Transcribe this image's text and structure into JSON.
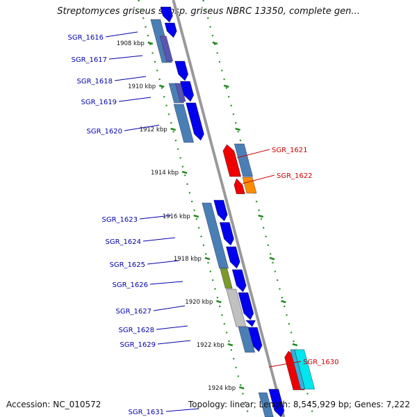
{
  "title": "Streptomyces griseus subsp. griseus NBRC 13350, complete gen...",
  "footer": {
    "accession": "Accession: NC_010572",
    "topology": "Topology: linear; Length: 8,545,929 bp; Genes: 7,222"
  },
  "colors": {
    "plus_strand": "#0000ee",
    "minus_strand": "#ee0000",
    "label_plus": "#0000aa",
    "label_minus": "#cc0000",
    "feature_blue": "#4a7fb5",
    "feature_purple": "#5a55b0",
    "feature_olive": "#7a9a2a",
    "feature_grey": "#c0c0c0",
    "feature_orange": "#ff8c00",
    "feature_cyan": "#00e5ee",
    "ruler": "#228b22",
    "backbone": "#888888"
  },
  "kbp_labels": [
    "1908 kbp",
    "1910 kbp",
    "1912 kbp",
    "1914 kbp",
    "1916 kbp",
    "1918 kbp",
    "1920 kbp",
    "1922 kbp",
    "1924 kbp"
  ],
  "genes": [
    {
      "name": "SGR_1616",
      "strand": "+"
    },
    {
      "name": "SGR_1617",
      "strand": "+"
    },
    {
      "name": "SGR_1618",
      "strand": "+"
    },
    {
      "name": "SGR_1619",
      "strand": "+"
    },
    {
      "name": "SGR_1620",
      "strand": "+"
    },
    {
      "name": "SGR_1621",
      "strand": "-"
    },
    {
      "name": "SGR_1622",
      "strand": "-"
    },
    {
      "name": "SGR_1623",
      "strand": "+"
    },
    {
      "name": "SGR_1624",
      "strand": "+"
    },
    {
      "name": "SGR_1625",
      "strand": "+"
    },
    {
      "name": "SGR_1626",
      "strand": "+"
    },
    {
      "name": "SGR_1627",
      "strand": "+"
    },
    {
      "name": "SGR_1628",
      "strand": "+"
    },
    {
      "name": "SGR_1629",
      "strand": "+"
    },
    {
      "name": "SGR_1630",
      "strand": "-"
    },
    {
      "name": "SGR_1631",
      "strand": "+"
    }
  ]
}
